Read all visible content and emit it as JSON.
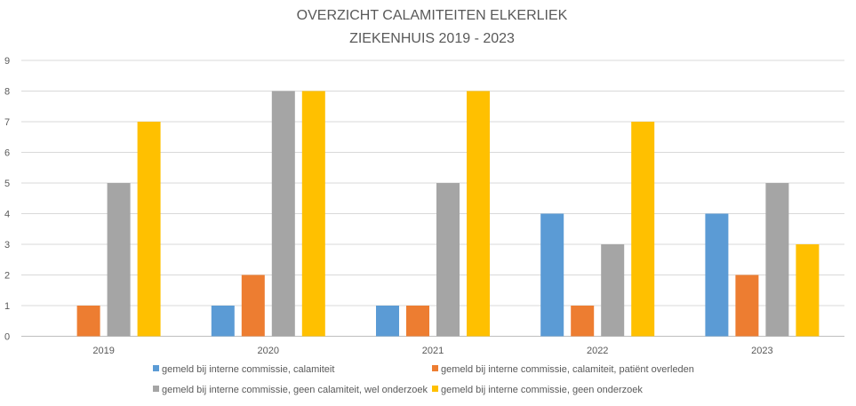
{
  "chart_data": {
    "type": "bar",
    "title": [
      "OVERZICHT CALAMITEITEN ELKERLIEK",
      "ZIEKENHUIS 2019 - 2023"
    ],
    "xlabel": "",
    "ylabel": "",
    "categories": [
      "2019",
      "2020",
      "2021",
      "2022",
      "2023"
    ],
    "ylim": [
      0,
      9
    ],
    "yticks": [
      0,
      1,
      2,
      3,
      4,
      5,
      6,
      7,
      8,
      9
    ],
    "grid": true,
    "legend_position": "bottom",
    "series": [
      {
        "name": "gemeld bij interne commissie, calamiteit",
        "color": "#5B9BD5",
        "values": [
          0,
          1,
          1,
          4,
          4
        ]
      },
      {
        "name": "gemeld bij interne commissie, calamiteit, patiënt overleden",
        "color": "#ED7D31",
        "values": [
          1,
          2,
          1,
          1,
          2
        ]
      },
      {
        "name": "gemeld bij interne commissie, geen calamiteit, wel onderzoek",
        "color": "#A5A5A5",
        "values": [
          5,
          8,
          5,
          3,
          5
        ]
      },
      {
        "name": "gemeld bij interne commissie, geen onderzoek",
        "color": "#FFC000",
        "values": [
          7,
          8,
          8,
          7,
          3
        ]
      }
    ]
  }
}
